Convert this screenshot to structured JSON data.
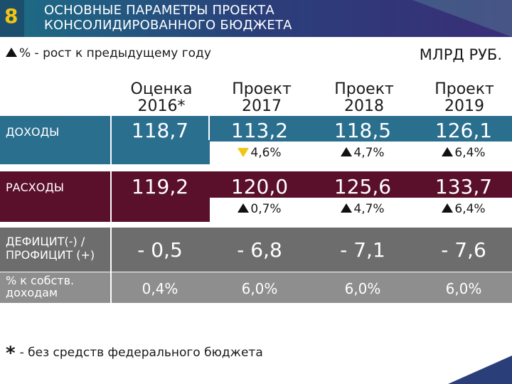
{
  "slide": {
    "number": "8",
    "title_line1": "ОСНОВНЫЕ ПАРАМЕТРЫ ПРОЕКТА",
    "title_line2": "КОНСОЛИДИРОВАННОГО БЮДЖЕТА",
    "legend": "% - рост к предыдущему году",
    "units": "МЛРД РУБ.",
    "footnote": "- без средств федерального бюджета",
    "footnote_mark": "*"
  },
  "columns": [
    {
      "line1": "Оценка",
      "line2": "2016*"
    },
    {
      "line1": "Проект",
      "line2": "2017"
    },
    {
      "line1": "Проект",
      "line2": "2018"
    },
    {
      "line1": "Проект",
      "line2": "2019"
    }
  ],
  "rows": {
    "income": {
      "label": "ДОХОДЫ",
      "values": [
        "118,7",
        "113,2",
        "118,5",
        "126,1"
      ],
      "growth": [
        "",
        "4,6%",
        "4,7%",
        "6,4%"
      ],
      "growth_direction": [
        "",
        "down",
        "up",
        "up"
      ]
    },
    "expense": {
      "label": "РАСХОДЫ",
      "values": [
        "119,2",
        "120,0",
        "125,6",
        "133,7"
      ],
      "growth": [
        "",
        "0,7%",
        "4,7%",
        "6,4%"
      ],
      "growth_direction": [
        "",
        "up",
        "up",
        "up"
      ]
    },
    "deficit": {
      "label_line1": "ДЕФИЦИТ(-) /",
      "label_line2": "ПРОФИЦИТ (+)",
      "values": [
        "- 0,5",
        "- 6,8",
        "- 7,1",
        "- 7,6"
      ]
    },
    "percent": {
      "label_line1": "% к собств.",
      "label_line2": "доходам",
      "values": [
        "0,4%",
        "6,0%",
        "6,0%",
        "6,0%"
      ]
    }
  },
  "colors": {
    "income_band": "#2b6f8f",
    "expense_band": "#5a0f2a",
    "deficit_band": "#6d6d6d",
    "percent_band": "#8e8e8e",
    "accent_yellow": "#f2c511"
  }
}
